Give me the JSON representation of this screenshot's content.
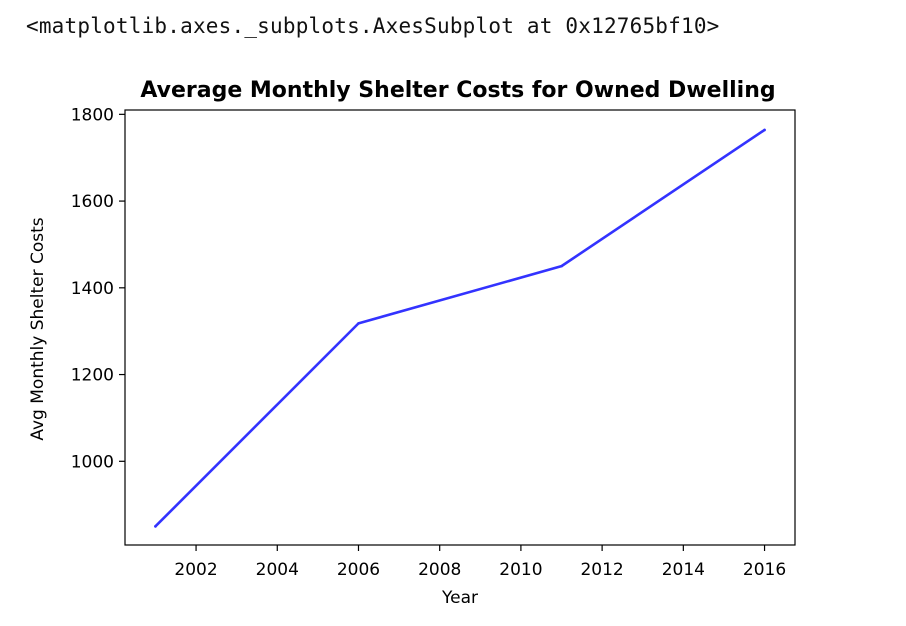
{
  "output": {
    "repr_text": "<matplotlib.axes._subplots.AxesSubplot at 0x12765bf10>"
  },
  "colors": {
    "line": "#3333ff",
    "axes": "#000000",
    "text": "#000000"
  },
  "chart_data": {
    "type": "line",
    "title": "Average Monthly Shelter Costs for Owned Dwelling",
    "xlabel": "Year",
    "ylabel": "Avg Monthly Shelter Costs",
    "xlim": [
      2000.25,
      2016.75
    ],
    "ylim": [
      807,
      1810
    ],
    "x_ticks": [
      2002,
      2004,
      2006,
      2008,
      2010,
      2012,
      2014,
      2016
    ],
    "y_ticks": [
      1000,
      1200,
      1400,
      1600,
      1800
    ],
    "grid": false,
    "series": [
      {
        "x": [
          2001,
          2006,
          2011,
          2016
        ],
        "values": [
          850,
          1318,
          1450,
          1764
        ]
      }
    ]
  }
}
